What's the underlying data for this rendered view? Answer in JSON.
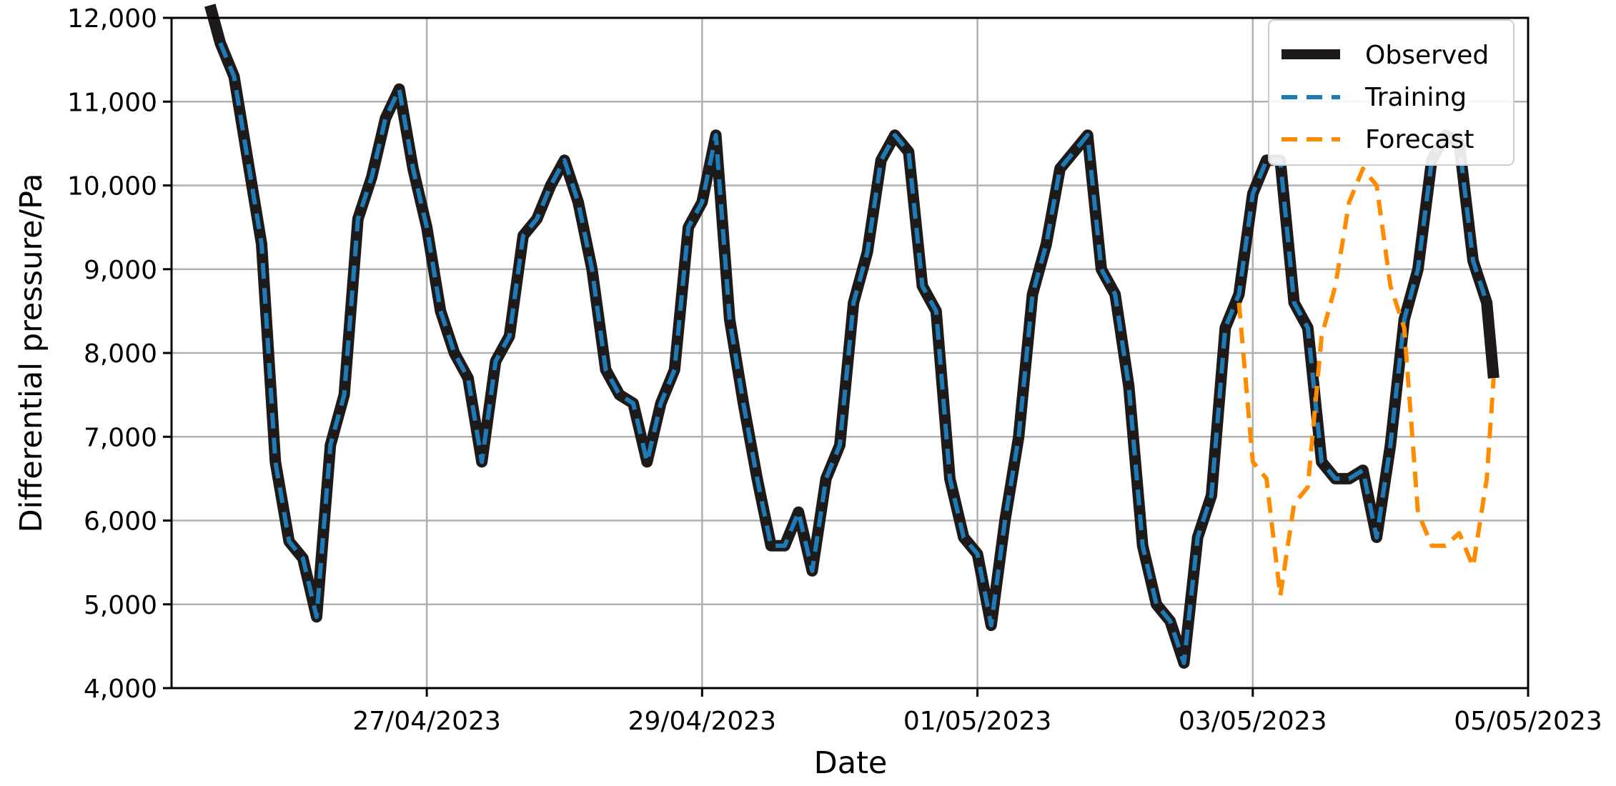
{
  "chart_data": {
    "type": "line",
    "title": "",
    "xlabel": "Date",
    "ylabel": "Differential pressure/Pa",
    "x_ticks": [
      "27/04/2023",
      "29/04/2023",
      "01/05/2023",
      "03/05/2023",
      "05/05/2023"
    ],
    "x_range": [
      "2023-04-25T03:30",
      "2023-05-05T00:00"
    ],
    "ylim": [
      4000,
      12000
    ],
    "y_ticks": [
      "4,000",
      "5,000",
      "6,000",
      "7,000",
      "8,000",
      "9,000",
      "10,000",
      "11,000",
      "12,000"
    ],
    "grid": true,
    "legend_position": "top-right",
    "colors": {
      "observed": "#1e1a1a",
      "training": "#1f7bb8",
      "forecast": "#ff8c00"
    },
    "series": [
      {
        "name": "Observed",
        "style": "solid",
        "x": [
          "2023-04-25T10:12",
          "2023-04-25T12:00",
          "2023-04-25T14:24",
          "2023-04-25T16:48",
          "2023-04-25T19:12",
          "2023-04-25T21:36",
          "2023-04-26T00:00",
          "2023-04-26T02:24",
          "2023-04-26T04:48",
          "2023-04-26T07:12",
          "2023-04-26T09:36",
          "2023-04-26T12:00",
          "2023-04-26T14:24",
          "2023-04-26T16:48",
          "2023-04-26T19:12",
          "2023-04-26T21:36",
          "2023-04-27T00:00",
          "2023-04-27T02:24",
          "2023-04-27T04:48",
          "2023-04-27T07:12",
          "2023-04-27T09:36",
          "2023-04-27T12:00",
          "2023-04-27T14:24",
          "2023-04-27T16:48",
          "2023-04-27T19:12",
          "2023-04-27T21:36",
          "2023-04-28T00:00",
          "2023-04-28T02:24",
          "2023-04-28T04:48",
          "2023-04-28T07:12",
          "2023-04-28T09:36",
          "2023-04-28T12:00",
          "2023-04-28T14:24",
          "2023-04-28T16:48",
          "2023-04-28T19:12",
          "2023-04-28T21:36",
          "2023-04-29T00:00",
          "2023-04-29T02:24",
          "2023-04-29T04:48",
          "2023-04-29T07:12",
          "2023-04-29T09:36",
          "2023-04-29T12:00",
          "2023-04-29T14:24",
          "2023-04-29T16:48",
          "2023-04-29T19:12",
          "2023-04-29T21:36",
          "2023-04-30T00:00",
          "2023-04-30T02:24",
          "2023-04-30T04:48",
          "2023-04-30T07:12",
          "2023-04-30T09:36",
          "2023-04-30T12:00",
          "2023-04-30T14:24",
          "2023-04-30T16:48",
          "2023-04-30T19:12",
          "2023-04-30T21:36",
          "2023-05-01T00:00",
          "2023-05-01T02:24",
          "2023-05-01T04:48",
          "2023-05-01T07:12",
          "2023-05-01T09:36",
          "2023-05-01T12:00",
          "2023-05-01T14:24",
          "2023-05-01T16:48",
          "2023-05-01T19:12",
          "2023-05-01T21:36",
          "2023-05-02T00:00",
          "2023-05-02T02:24",
          "2023-05-02T04:48",
          "2023-05-02T07:12",
          "2023-05-02T09:36",
          "2023-05-02T12:00",
          "2023-05-02T14:24",
          "2023-05-02T16:48",
          "2023-05-02T19:12",
          "2023-05-02T21:36",
          "2023-05-03T00:00",
          "2023-05-03T02:24",
          "2023-05-03T04:48",
          "2023-05-03T07:12",
          "2023-05-03T09:36",
          "2023-05-03T12:00",
          "2023-05-03T14:24",
          "2023-05-03T16:48",
          "2023-05-03T19:12",
          "2023-05-03T21:36",
          "2023-05-04T00:00",
          "2023-05-04T02:24",
          "2023-05-04T04:48",
          "2023-05-04T07:12",
          "2023-05-04T09:36",
          "2023-05-04T12:00",
          "2023-05-04T14:24",
          "2023-05-04T16:48",
          "2023-05-04T18:00"
        ],
        "values": [
          12150,
          11700,
          11300,
          10300,
          9300,
          6700,
          5750,
          5550,
          4850,
          6900,
          7500,
          9600,
          10100,
          10800,
          11150,
          10200,
          9500,
          8500,
          8000,
          7700,
          6700,
          7900,
          8200,
          9400,
          9600,
          10000,
          10300,
          9800,
          9000,
          7800,
          7500,
          7400,
          6700,
          7400,
          7800,
          9500,
          9800,
          10600,
          8400,
          7400,
          6500,
          5700,
          5700,
          6100,
          5400,
          6500,
          6900,
          8600,
          9200,
          10300,
          10600,
          10400,
          8800,
          8500,
          6500,
          5800,
          5600,
          4750,
          6000,
          7000,
          8700,
          9300,
          10200,
          10400,
          10600,
          9000,
          8700,
          7600,
          5700,
          5000,
          4800,
          4300,
          5800,
          6300,
          8300,
          8700,
          9900,
          10300,
          10300,
          8600,
          8300,
          6700,
          6500,
          6500,
          6600,
          5800,
          6900,
          8400,
          9000,
          10300,
          10600,
          10500,
          9100,
          8600,
          7700
        ]
      },
      {
        "name": "Training",
        "style": "dashed",
        "x": [
          "2023-04-25T12:00",
          "2023-04-25T14:24",
          "2023-04-25T16:48",
          "2023-04-25T19:12",
          "2023-04-25T21:36",
          "2023-04-26T00:00",
          "2023-04-26T02:24",
          "2023-04-26T04:48",
          "2023-04-26T07:12",
          "2023-04-26T09:36",
          "2023-04-26T12:00",
          "2023-04-26T14:24",
          "2023-04-26T16:48",
          "2023-04-26T19:12",
          "2023-04-26T21:36",
          "2023-04-27T00:00",
          "2023-04-27T02:24",
          "2023-04-27T04:48",
          "2023-04-27T07:12",
          "2023-04-27T09:36",
          "2023-04-27T12:00",
          "2023-04-27T14:24",
          "2023-04-27T16:48",
          "2023-04-27T19:12",
          "2023-04-27T21:36",
          "2023-04-28T00:00",
          "2023-04-28T02:24",
          "2023-04-28T04:48",
          "2023-04-28T07:12",
          "2023-04-28T09:36",
          "2023-04-28T12:00",
          "2023-04-28T14:24",
          "2023-04-28T16:48",
          "2023-04-28T19:12",
          "2023-04-28T21:36",
          "2023-04-29T00:00",
          "2023-04-29T02:24",
          "2023-04-29T04:48",
          "2023-04-29T07:12",
          "2023-04-29T09:36",
          "2023-04-29T12:00",
          "2023-04-29T14:24",
          "2023-04-29T16:48",
          "2023-04-29T19:12",
          "2023-04-29T21:36",
          "2023-04-30T00:00",
          "2023-04-30T02:24",
          "2023-04-30T04:48",
          "2023-04-30T07:12",
          "2023-04-30T09:36",
          "2023-04-30T12:00",
          "2023-04-30T14:24",
          "2023-04-30T16:48",
          "2023-04-30T19:12",
          "2023-04-30T21:36",
          "2023-05-01T00:00",
          "2023-05-01T02:24",
          "2023-05-01T04:48",
          "2023-05-01T07:12",
          "2023-05-01T09:36",
          "2023-05-01T12:00",
          "2023-05-01T14:24",
          "2023-05-01T16:48",
          "2023-05-01T19:12",
          "2023-05-01T21:36",
          "2023-05-02T00:00",
          "2023-05-02T02:24",
          "2023-05-02T04:48",
          "2023-05-02T07:12",
          "2023-05-02T09:36",
          "2023-05-02T12:00",
          "2023-05-02T14:24",
          "2023-05-02T16:48",
          "2023-05-02T19:12",
          "2023-05-02T21:36",
          "2023-05-03T00:00",
          "2023-05-03T02:24",
          "2023-05-03T04:48",
          "2023-05-03T07:12",
          "2023-05-03T09:36",
          "2023-05-03T12:00",
          "2023-05-03T14:24",
          "2023-05-03T16:48",
          "2023-05-03T19:12",
          "2023-05-03T21:36",
          "2023-05-04T00:00",
          "2023-05-04T02:24",
          "2023-05-04T04:48",
          "2023-05-04T07:12",
          "2023-05-04T09:36",
          "2023-05-04T12:00",
          "2023-05-04T14:24",
          "2023-05-04T16:48"
        ],
        "values": [
          11700,
          11300,
          10300,
          9300,
          6700,
          5750,
          5550,
          4850,
          6900,
          7500,
          9600,
          10100,
          10800,
          11150,
          10200,
          9500,
          8500,
          8000,
          7700,
          6700,
          7900,
          8200,
          9400,
          9600,
          10000,
          10300,
          9800,
          9000,
          7800,
          7500,
          7400,
          6700,
          7400,
          7800,
          9500,
          9800,
          10600,
          8400,
          7400,
          6500,
          5700,
          5700,
          6100,
          5400,
          6500,
          6900,
          8600,
          9200,
          10300,
          10600,
          10400,
          8800,
          8500,
          6500,
          5800,
          5600,
          4750,
          6000,
          7000,
          8700,
          9300,
          10200,
          10400,
          10600,
          9000,
          8700,
          7600,
          5700,
          5000,
          4800,
          4300,
          5800,
          6300,
          8300,
          8700,
          9900,
          10300,
          10300,
          8600,
          8300,
          6700,
          6500,
          6500,
          6600,
          5800,
          6900,
          8400,
          9000,
          10300,
          10600,
          10500,
          9100,
          8600
        ]
      },
      {
        "name": "Forecast",
        "style": "dashed",
        "x": [
          "2023-05-02T21:36",
          "2023-05-03T00:00",
          "2023-05-03T02:24",
          "2023-05-03T04:48",
          "2023-05-03T07:12",
          "2023-05-03T09:36",
          "2023-05-03T12:00",
          "2023-05-03T14:24",
          "2023-05-03T16:48",
          "2023-05-03T19:12",
          "2023-05-03T21:36",
          "2023-05-04T00:00",
          "2023-05-04T02:24",
          "2023-05-04T04:48",
          "2023-05-04T07:12",
          "2023-05-04T09:36",
          "2023-05-04T12:00",
          "2023-05-04T14:24",
          "2023-05-04T16:48",
          "2023-05-04T18:00"
        ],
        "values": [
          8600,
          6700,
          6500,
          5100,
          6200,
          6400,
          8200,
          8800,
          9800,
          10200,
          10000,
          8800,
          8300,
          6100,
          5700,
          5700,
          5850,
          5450,
          6500,
          7700
        ]
      }
    ]
  }
}
